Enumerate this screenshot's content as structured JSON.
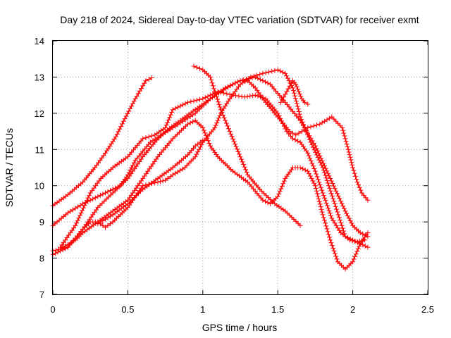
{
  "chart_data": {
    "type": "scatter",
    "title": "Day 218 of 2024, Sidereal Day-to-day VTEC variation (SDTVAR) for receiver exmt",
    "xlabel": "GPS time / hours",
    "ylabel": "SDTVAR / TECUs",
    "xlim": [
      0,
      2.5
    ],
    "ylim": [
      7,
      14
    ],
    "xticks": [
      "0",
      "0.5",
      "1",
      "1.5",
      "2",
      "2.5"
    ],
    "yticks": [
      "7",
      "8",
      "9",
      "10",
      "11",
      "12",
      "13",
      "14"
    ],
    "grid": true,
    "marker": "plus",
    "color": "#ff0000",
    "series": [
      {
        "name": "track-1",
        "x": [
          0.0,
          0.1,
          0.2,
          0.28,
          0.35,
          0.42,
          0.48,
          0.55,
          0.62,
          0.66
        ],
        "y": [
          9.45,
          9.75,
          10.1,
          10.5,
          10.9,
          11.35,
          11.85,
          12.4,
          12.9,
          12.98
        ]
      },
      {
        "name": "track-2",
        "x": [
          0.0,
          0.1,
          0.2,
          0.3,
          0.4,
          0.5,
          0.6,
          0.68,
          0.75,
          0.85,
          0.95,
          1.05,
          1.12,
          1.2,
          1.25,
          1.3,
          1.35,
          1.42,
          1.5,
          1.58,
          1.62,
          1.66,
          1.7,
          1.78,
          1.86,
          1.93,
          1.97,
          2.0,
          2.03,
          2.06,
          2.1
        ],
        "y": [
          8.2,
          8.3,
          8.8,
          9.4,
          9.8,
          10.2,
          10.8,
          11.2,
          11.5,
          11.8,
          12.1,
          12.4,
          12.6,
          12.8,
          12.9,
          12.9,
          12.7,
          12.3,
          11.9,
          11.5,
          11.4,
          11.5,
          11.6,
          11.7,
          11.9,
          11.6,
          11.0,
          10.5,
          10.1,
          9.8,
          9.6
        ]
      },
      {
        "name": "track-3",
        "x": [
          0.0,
          0.1,
          0.2,
          0.3,
          0.4,
          0.45,
          0.5,
          0.55,
          0.65,
          0.8,
          0.95,
          1.05,
          1.15,
          1.25,
          1.35,
          1.45,
          1.55,
          1.65,
          1.75,
          1.85,
          1.95,
          2.0,
          2.05,
          2.1
        ],
        "y": [
          8.9,
          9.25,
          9.5,
          9.7,
          9.9,
          10.0,
          10.3,
          10.7,
          11.2,
          11.6,
          12.0,
          12.4,
          12.7,
          12.9,
          13.0,
          12.8,
          12.3,
          11.8,
          11.1,
          10.2,
          9.3,
          8.9,
          8.7,
          8.6
        ]
      },
      {
        "name": "track-4",
        "x": [
          0.05,
          0.15,
          0.25,
          0.32,
          0.4,
          0.5,
          0.6,
          0.68,
          0.75,
          0.8,
          0.9,
          1.0,
          1.1,
          1.2,
          1.28,
          1.35,
          1.42,
          1.5,
          1.56,
          1.6,
          1.65,
          1.7,
          1.75,
          1.8,
          1.86,
          1.92,
          1.98,
          2.03,
          2.08
        ],
        "y": [
          8.3,
          8.9,
          9.8,
          10.2,
          10.5,
          10.8,
          11.3,
          11.4,
          11.6,
          12.1,
          12.3,
          12.4,
          12.6,
          12.5,
          12.45,
          12.5,
          12.4,
          12.0,
          11.5,
          11.3,
          11.2,
          10.9,
          10.4,
          9.8,
          9.1,
          8.7,
          8.5,
          8.45,
          8.5
        ]
      },
      {
        "name": "track-5",
        "x": [
          0.0,
          0.1,
          0.2,
          0.25,
          0.3,
          0.35,
          0.4,
          0.45,
          0.5,
          0.6,
          0.7,
          0.75,
          0.8,
          0.88,
          0.95,
          1.0,
          1.08,
          1.12,
          1.18,
          1.25,
          1.32,
          1.4,
          1.5,
          1.55,
          1.6,
          1.65,
          1.72,
          1.8,
          1.88,
          1.95,
          2.05,
          2.1
        ],
        "y": [
          8.1,
          8.3,
          8.8,
          9.0,
          9.0,
          8.85,
          9.0,
          9.2,
          9.4,
          10.0,
          10.1,
          10.15,
          10.3,
          10.5,
          10.8,
          11.2,
          11.6,
          12.0,
          12.4,
          12.8,
          13.0,
          13.1,
          13.2,
          13.1,
          12.7,
          11.9,
          11.2,
          10.5,
          9.5,
          8.6,
          8.4,
          8.3
        ]
      },
      {
        "name": "track-6",
        "x": [
          0.05,
          0.15,
          0.2,
          0.3,
          0.4,
          0.5,
          0.6,
          0.7,
          0.8,
          0.9,
          0.95,
          1.0,
          1.05,
          1.1,
          1.15,
          1.2,
          1.3,
          1.4,
          1.45,
          1.5,
          1.55,
          1.6,
          1.65,
          1.7,
          1.75,
          1.8,
          1.85,
          1.9,
          1.95,
          2.0,
          2.05,
          2.1
        ],
        "y": [
          8.25,
          8.5,
          8.7,
          9.0,
          9.3,
          9.6,
          10.2,
          10.8,
          11.3,
          11.7,
          11.8,
          11.6,
          11.1,
          10.8,
          10.6,
          10.4,
          10.1,
          9.6,
          9.5,
          9.7,
          10.2,
          10.5,
          10.5,
          10.4,
          10.0,
          9.2,
          8.5,
          7.9,
          7.7,
          7.9,
          8.4,
          8.7
        ]
      },
      {
        "name": "track-7",
        "x": [
          0.3,
          0.4,
          0.5,
          0.6,
          0.7,
          0.8,
          0.9,
          0.95,
          1.0
        ],
        "y": [
          8.95,
          9.2,
          9.5,
          9.9,
          10.2,
          10.5,
          10.85,
          11.1,
          11.25
        ]
      },
      {
        "name": "track-8",
        "x": [
          0.94,
          1.0,
          1.05,
          1.08,
          1.12,
          1.18,
          1.25,
          1.3,
          1.38,
          1.48,
          1.55,
          1.65
        ],
        "y": [
          13.3,
          13.2,
          13.0,
          12.6,
          12.1,
          11.5,
          10.8,
          10.3,
          9.9,
          9.5,
          9.3,
          8.9
        ]
      },
      {
        "name": "track-9",
        "x": [
          1.52,
          1.56,
          1.6,
          1.62,
          1.64,
          1.66,
          1.68,
          1.7
        ],
        "y": [
          12.3,
          12.6,
          12.9,
          12.8,
          12.6,
          12.4,
          12.3,
          12.25
        ]
      }
    ]
  }
}
